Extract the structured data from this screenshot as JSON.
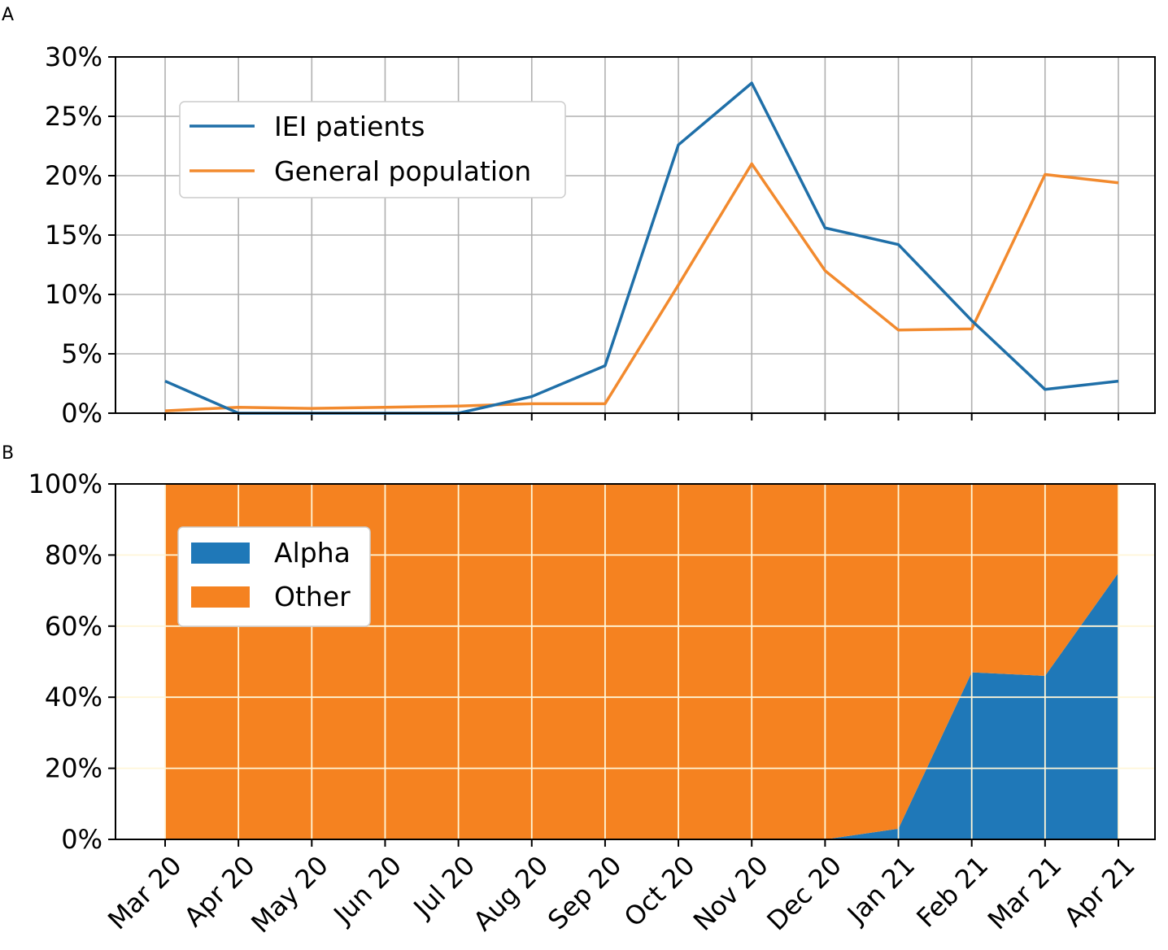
{
  "panel_a_letter": "A",
  "panel_b_letter": "B",
  "chart_data": [
    {
      "type": "line",
      "panel": "A",
      "categories": [
        "Mar 20",
        "Apr 20",
        "May 20",
        "Jun 20",
        "Jul 20",
        "Aug 20",
        "Sep 20",
        "Oct 20",
        "Nov 20",
        "Dec 20",
        "Jan 21",
        "Feb 21",
        "Mar 21",
        "Apr 21"
      ],
      "series": [
        {
          "name": "IEI patients",
          "color": "#1f6fa8",
          "values": [
            2.7,
            0.0,
            0.0,
            0.0,
            0.0,
            1.4,
            4.0,
            22.6,
            27.8,
            15.6,
            14.2,
            7.8,
            2.0,
            2.7
          ]
        },
        {
          "name": "General population",
          "color": "#f28a2e",
          "values": [
            0.2,
            0.5,
            0.4,
            0.5,
            0.6,
            0.8,
            0.8,
            10.8,
            21.0,
            12.0,
            7.0,
            7.1,
            20.1,
            19.4
          ]
        }
      ],
      "yticks": [
        "0%",
        "5%",
        "10%",
        "15%",
        "20%",
        "25%",
        "30%"
      ],
      "ylim": [
        0,
        30
      ],
      "grid": true,
      "legend": "upper-left"
    },
    {
      "type": "area",
      "panel": "B",
      "stacked": true,
      "categories": [
        "Mar 20",
        "Apr 20",
        "May 20",
        "Jun 20",
        "Jul 20",
        "Aug 20",
        "Sep 20",
        "Oct 20",
        "Nov 20",
        "Dec 20",
        "Jan 21",
        "Feb 21",
        "Mar 21",
        "Apr 21"
      ],
      "series": [
        {
          "name": "Alpha",
          "color": "#1f78b8",
          "values": [
            0,
            0,
            0,
            0,
            0,
            0,
            0,
            0,
            0,
            0,
            3,
            47,
            46,
            75
          ]
        },
        {
          "name": "Other",
          "color": "#f58220",
          "values": [
            100,
            100,
            100,
            100,
            100,
            100,
            100,
            100,
            100,
            100,
            97,
            53,
            54,
            25
          ]
        }
      ],
      "yticks": [
        "0%",
        "20%",
        "40%",
        "60%",
        "80%",
        "100%"
      ],
      "ylim": [
        0,
        100
      ],
      "grid": true,
      "legend": "upper-left"
    }
  ]
}
